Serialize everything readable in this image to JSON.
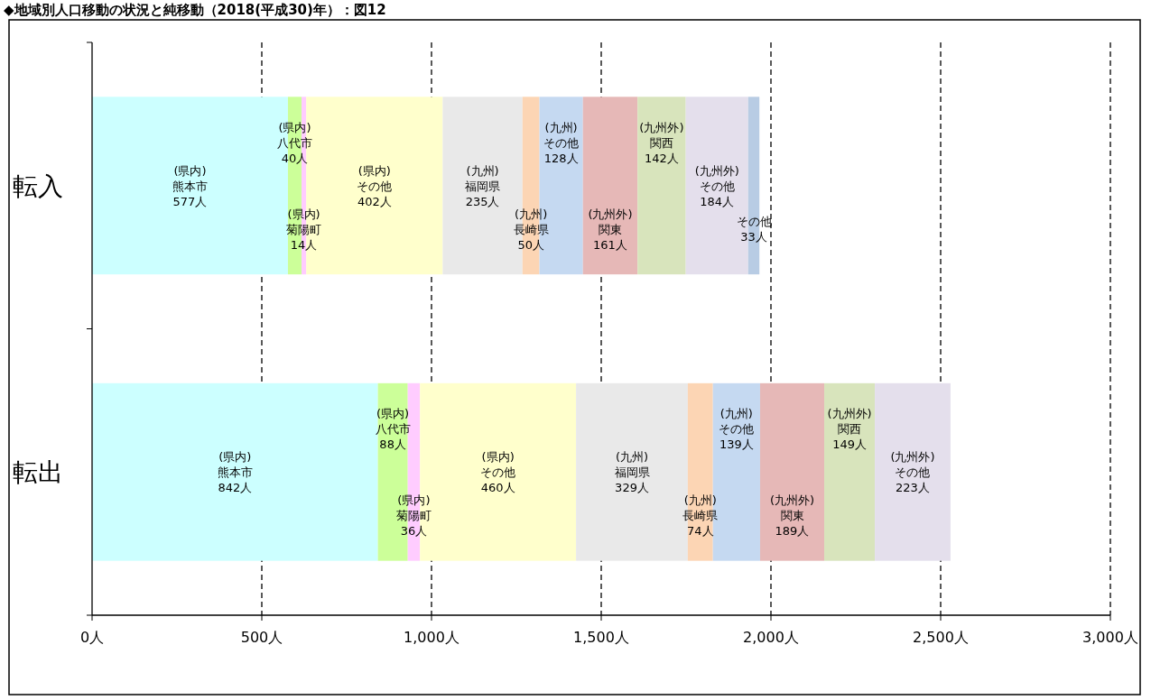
{
  "chart_data": {
    "type": "bar",
    "orientation": "horizontal",
    "stacked": true,
    "title": "◆地域別人口移動の状況と純移動（2018(平成30)年）：図12",
    "categories": [
      "転入",
      "転出"
    ],
    "xlim": [
      0,
      3000
    ],
    "xticks": [
      {
        "value": 0,
        "label": "0人"
      },
      {
        "value": 500,
        "label": "500人"
      },
      {
        "value": 1000,
        "label": "1,000人"
      },
      {
        "value": 1500,
        "label": "1,500人"
      },
      {
        "value": 2000,
        "label": "2,000人"
      },
      {
        "value": 2500,
        "label": "2,500人"
      },
      {
        "value": 3000,
        "label": "3,000人"
      }
    ],
    "grid": "x",
    "series": [
      {
        "name": "(県内)\n熊本市",
        "color": "#ccffff",
        "values": [
          577,
          842
        ],
        "value_labels": [
          "577人",
          "842人"
        ]
      },
      {
        "name": "(県内)\n八代市",
        "color": "#ccff99",
        "values": [
          40,
          88
        ],
        "value_labels": [
          "40人",
          "88人"
        ]
      },
      {
        "name": "(県内)\n菊陽町",
        "color": "#ffccff",
        "values": [
          14,
          36
        ],
        "value_labels": [
          "14人",
          "36人"
        ]
      },
      {
        "name": "(県内)\nその他",
        "color": "#ffffcc",
        "values": [
          402,
          460
        ],
        "value_labels": [
          "402人",
          "460人"
        ]
      },
      {
        "name": "(九州)\n福岡県",
        "color": "#e9e9e9",
        "values": [
          235,
          329
        ],
        "value_labels": [
          "235人",
          "329人"
        ]
      },
      {
        "name": "(九州)\n長崎県",
        "color": "#fcd5b4",
        "values": [
          50,
          74
        ],
        "value_labels": [
          "50人",
          "74人"
        ]
      },
      {
        "name": "(九州)\nその他",
        "color": "#c5d9f1",
        "values": [
          128,
          139
        ],
        "value_labels": [
          "128人",
          "139人"
        ]
      },
      {
        "name": "(九州外)\n関東",
        "color": "#e6b8b7",
        "values": [
          161,
          189
        ],
        "value_labels": [
          "161人",
          "189人"
        ]
      },
      {
        "name": "(九州外)\n関西",
        "color": "#d8e4bc",
        "values": [
          142,
          149
        ],
        "value_labels": [
          "142人",
          "149人"
        ]
      },
      {
        "name": "(九州外)\nその他",
        "color": "#e4dfec",
        "values": [
          184,
          223
        ],
        "value_labels": [
          "184人",
          "223人"
        ]
      },
      {
        "name": "その他",
        "color": "#b8cce4",
        "values": [
          33,
          null
        ],
        "value_labels": [
          "33人",
          null
        ]
      }
    ]
  }
}
